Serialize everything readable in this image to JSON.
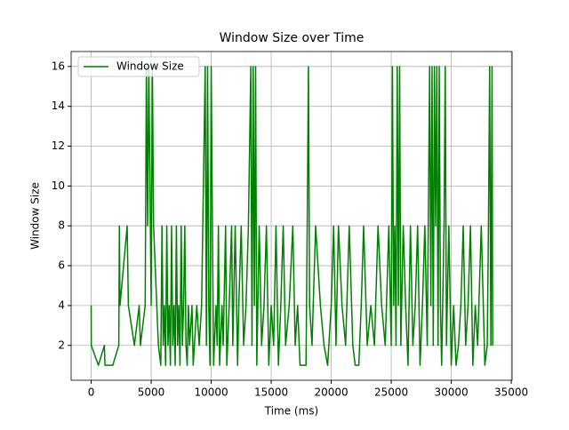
{
  "chart_data": {
    "type": "line",
    "title": "Window Size over Time",
    "x_label": "Time (ms)",
    "y_label": "Window Size",
    "x": [
      0,
      10,
      600,
      1100,
      1150,
      1800,
      2300,
      2350,
      2400,
      3000,
      3100,
      3600,
      4000,
      4100,
      4500,
      4600,
      4700,
      4800,
      5000,
      5100,
      5200,
      5600,
      5800,
      5900,
      6000,
      6100,
      6200,
      6300,
      6400,
      6500,
      6600,
      6700,
      6800,
      6900,
      7000,
      7100,
      7200,
      7300,
      7400,
      7500,
      7600,
      7700,
      7800,
      7900,
      8000,
      8100,
      8200,
      8400,
      8500,
      8600,
      8800,
      9000,
      9200,
      9500,
      9600,
      9700,
      9800,
      9900,
      10000,
      10100,
      10200,
      10400,
      10500,
      10600,
      10700,
      10900,
      11000,
      11200,
      11300,
      11500,
      11700,
      11800,
      12000,
      12200,
      12300,
      12500,
      12700,
      12900,
      13100,
      13300,
      13400,
      13500,
      13600,
      13700,
      13800,
      14000,
      14200,
      14400,
      14600,
      14800,
      15000,
      15200,
      15400,
      15600,
      15800,
      16000,
      16200,
      16500,
      16800,
      17000,
      17200,
      17400,
      17900,
      18000,
      18100,
      18200,
      18400,
      18700,
      19100,
      19400,
      19700,
      20000,
      20200,
      20400,
      20600,
      20900,
      21200,
      21500,
      21800,
      22000,
      22300,
      22500,
      22700,
      23000,
      23300,
      23600,
      23900,
      24200,
      24500,
      24800,
      25000,
      25100,
      25200,
      25300,
      25400,
      25500,
      25600,
      25700,
      25800,
      26000,
      26200,
      26400,
      26600,
      26800,
      27000,
      27200,
      27400,
      27600,
      27800,
      28000,
      28200,
      28300,
      28400,
      28500,
      28600,
      28700,
      28800,
      28900,
      29000,
      29100,
      29200,
      29400,
      29500,
      29600,
      29800,
      30000,
      30200,
      30400,
      30600,
      30800,
      31000,
      31200,
      31400,
      31600,
      31800,
      32000,
      32200,
      32500,
      32800,
      33000,
      33100,
      33200,
      33300,
      33400,
      33450
    ],
    "series": [
      {
        "name": "Window Size",
        "color": "#008000",
        "values": [
          4,
          2,
          1,
          2,
          1,
          1,
          2,
          8,
          4,
          8,
          4,
          2,
          4,
          2,
          4,
          16,
          8,
          16,
          4,
          16,
          8,
          2,
          1,
          8,
          2,
          4,
          1,
          8,
          2,
          4,
          1,
          8,
          2,
          4,
          1,
          8,
          2,
          4,
          1,
          8,
          2,
          4,
          8,
          2,
          1,
          4,
          2,
          4,
          1,
          2,
          4,
          2,
          4,
          16,
          2,
          16,
          4,
          1,
          16,
          8,
          1,
          4,
          2,
          8,
          1,
          4,
          2,
          8,
          1,
          4,
          8,
          2,
          8,
          1,
          4,
          8,
          2,
          4,
          8,
          16,
          2,
          16,
          4,
          16,
          1,
          8,
          2,
          4,
          8,
          1,
          4,
          2,
          8,
          1,
          4,
          8,
          2,
          4,
          8,
          2,
          4,
          1,
          1,
          8,
          16,
          4,
          2,
          8,
          4,
          2,
          1,
          4,
          8,
          2,
          8,
          4,
          2,
          8,
          2,
          1,
          1,
          4,
          8,
          2,
          4,
          2,
          8,
          4,
          2,
          8,
          2,
          16,
          4,
          8,
          2,
          16,
          4,
          16,
          2,
          8,
          4,
          1,
          8,
          2,
          4,
          8,
          1,
          4,
          8,
          2,
          16,
          4,
          16,
          2,
          16,
          8,
          16,
          2,
          16,
          4,
          1,
          8,
          16,
          2,
          8,
          1,
          4,
          1,
          2,
          4,
          8,
          2,
          4,
          8,
          1,
          4,
          2,
          8,
          1,
          2,
          8,
          16,
          2,
          16,
          2
        ]
      }
    ],
    "xlim": [
      -1670,
      35070
    ],
    "ylim": [
      0.25,
      16.75
    ],
    "xticks": [
      0,
      5000,
      10000,
      15000,
      20000,
      25000,
      30000,
      35000
    ],
    "yticks": [
      2,
      4,
      6,
      8,
      10,
      12,
      14,
      16
    ],
    "grid": true,
    "legend": "upper left"
  }
}
